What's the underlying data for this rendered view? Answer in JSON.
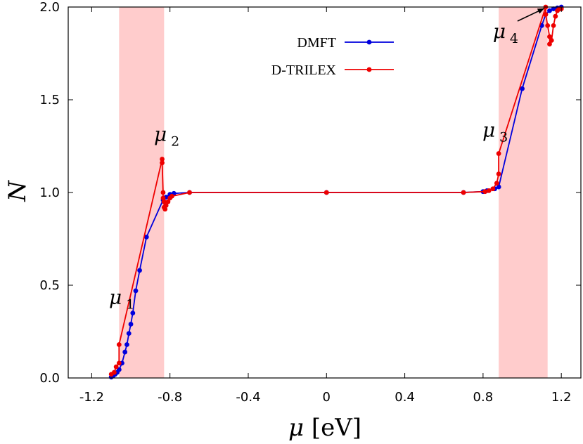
{
  "chart_data": {
    "type": "line",
    "xlabel": "μ [eV]",
    "ylabel": "N",
    "xlim": [
      -1.32,
      1.3
    ],
    "ylim": [
      0,
      2.0
    ],
    "xticks": [
      -1.2,
      -0.8,
      -0.4,
      0.0,
      0.4,
      0.8,
      1.2
    ],
    "xtick_labels": [
      "-1.2",
      "-0.8",
      "-0.4",
      "0",
      "0.4",
      "0.8",
      "1.2"
    ],
    "yticks": [
      0.0,
      0.5,
      1.0,
      1.5,
      2.0
    ],
    "ytick_labels": [
      "0.0",
      "0.5",
      "1.0",
      "1.5",
      "2.0"
    ],
    "grid": false,
    "legend_position": "top-right",
    "shaded_regions": [
      {
        "x": [
          -1.06,
          -0.83
        ],
        "color": "#ffcccc"
      },
      {
        "x": [
          0.88,
          1.13
        ],
        "color": "#ffcccc"
      }
    ],
    "annotations": [
      {
        "symbol": "μ",
        "sub": "1",
        "x": -1.05,
        "y": 0.18
      },
      {
        "symbol": "μ",
        "sub": "2",
        "x": -0.82,
        "y": 1.18
      },
      {
        "symbol": "μ",
        "sub": "3",
        "x": 0.88,
        "y": 1.21
      },
      {
        "symbol": "μ",
        "sub": "4",
        "x": 1.12,
        "y": 2.0
      }
    ],
    "series": [
      {
        "name": "DMFT",
        "color": "#0000dd",
        "points": [
          [
            -1.1,
            0.005
          ],
          [
            -1.09,
            0.012
          ],
          [
            -1.08,
            0.02
          ],
          [
            -1.07,
            0.03
          ],
          [
            -1.06,
            0.045
          ],
          [
            -1.045,
            0.08
          ],
          [
            -1.03,
            0.14
          ],
          [
            -1.02,
            0.18
          ],
          [
            -1.01,
            0.24
          ],
          [
            -1.0,
            0.29
          ],
          [
            -0.99,
            0.35
          ],
          [
            -0.975,
            0.47
          ],
          [
            -0.955,
            0.58
          ],
          [
            -0.92,
            0.76
          ],
          [
            -0.835,
            0.96
          ],
          [
            -0.82,
            0.975
          ],
          [
            -0.8,
            0.99
          ],
          [
            -0.78,
            0.995
          ],
          [
            -0.7,
            1.0
          ],
          [
            0.0,
            1.0
          ],
          [
            0.7,
            1.0
          ],
          [
            0.8,
            1.005
          ],
          [
            0.82,
            1.01
          ],
          [
            0.86,
            1.02
          ],
          [
            0.88,
            1.03
          ],
          [
            1.0,
            1.56
          ],
          [
            1.1,
            1.9
          ],
          [
            1.12,
            1.96
          ],
          [
            1.14,
            1.98
          ],
          [
            1.16,
            1.99
          ],
          [
            1.18,
            1.995
          ],
          [
            1.2,
            2.0
          ]
        ]
      },
      {
        "name": "D-TRILEX",
        "color": "#ee0000",
        "points": [
          [
            -1.1,
            0.02
          ],
          [
            -1.085,
            0.03
          ],
          [
            -1.075,
            0.06
          ],
          [
            -1.06,
            0.08
          ],
          [
            -1.06,
            0.18
          ],
          [
            -0.84,
            1.18
          ],
          [
            -0.84,
            1.16
          ],
          [
            -0.835,
            1.0
          ],
          [
            -0.835,
            0.97
          ],
          [
            -0.83,
            0.95
          ],
          [
            -0.83,
            0.92
          ],
          [
            -0.825,
            0.91
          ],
          [
            -0.82,
            0.93
          ],
          [
            -0.81,
            0.95
          ],
          [
            -0.8,
            0.97
          ],
          [
            -0.79,
            0.98
          ],
          [
            -0.7,
            1.0
          ],
          [
            0.0,
            1.0
          ],
          [
            0.7,
            1.0
          ],
          [
            0.81,
            1.005
          ],
          [
            0.83,
            1.01
          ],
          [
            0.85,
            1.02
          ],
          [
            0.87,
            1.05
          ],
          [
            0.88,
            1.1
          ],
          [
            0.88,
            1.21
          ],
          [
            1.12,
            2.0
          ],
          [
            1.12,
            1.96
          ],
          [
            1.13,
            1.9
          ],
          [
            1.14,
            1.84
          ],
          [
            1.14,
            1.8
          ],
          [
            1.15,
            1.82
          ],
          [
            1.16,
            1.9
          ],
          [
            1.17,
            1.95
          ],
          [
            1.18,
            1.98
          ],
          [
            1.19,
            1.99
          ],
          [
            1.2,
            1.99
          ]
        ]
      }
    ]
  }
}
